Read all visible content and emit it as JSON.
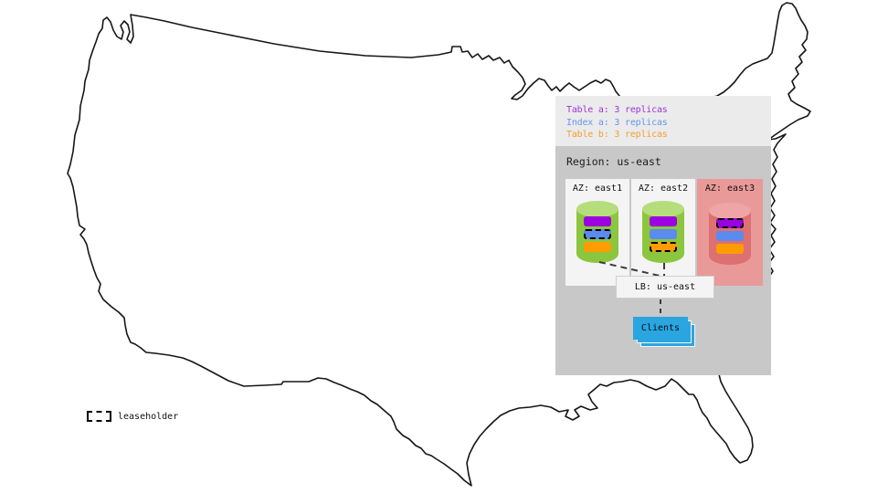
{
  "replica_legend": {
    "items": [
      {
        "name": "table-a",
        "label": "Table a: 3 replicas",
        "color": "#9c36d8"
      },
      {
        "name": "index-a",
        "label": "Index a: 3 replicas",
        "color": "#6495ed"
      },
      {
        "name": "table-b",
        "label": "Table b: 3 replicas",
        "color": "#f0a030"
      }
    ]
  },
  "region": {
    "title": "Region: us-east",
    "azs": [
      {
        "label": "AZ: east1",
        "box_color": "#f4f4f4",
        "cylinder": {
          "body_color": "#8cc63e",
          "top_color": "#b6dd7c"
        },
        "bands": [
          {
            "name": "table-a",
            "color": "#9a00e0",
            "leaseholder": false
          },
          {
            "name": "index-a",
            "color": "#5b8bef",
            "leaseholder": true
          },
          {
            "name": "table-b",
            "color": "#ff9d00",
            "leaseholder": false
          }
        ]
      },
      {
        "label": "AZ: east2",
        "box_color": "#f4f4f4",
        "cylinder": {
          "body_color": "#8cc63e",
          "top_color": "#b6dd7c"
        },
        "bands": [
          {
            "name": "table-a",
            "color": "#9a00e0",
            "leaseholder": false
          },
          {
            "name": "index-a",
            "color": "#5b8bef",
            "leaseholder": false
          },
          {
            "name": "table-b",
            "color": "#ff9d00",
            "leaseholder": true
          }
        ]
      },
      {
        "label": "AZ: east3",
        "box_color": "#ea9999",
        "cylinder": {
          "body_color": "#dd7070",
          "top_color": "#efa5a5"
        },
        "bands": [
          {
            "name": "table-a",
            "color": "#9a00e0",
            "leaseholder": true
          },
          {
            "name": "index-a",
            "color": "#5b8bef",
            "leaseholder": false
          },
          {
            "name": "table-b",
            "color": "#ff9d00",
            "leaseholder": false
          }
        ]
      }
    ]
  },
  "load_balancer": {
    "label": "LB: us-east"
  },
  "clients": {
    "label": "Clients",
    "color": "#2aa5e0"
  },
  "leaseholder_key": {
    "label": "leaseholder"
  }
}
